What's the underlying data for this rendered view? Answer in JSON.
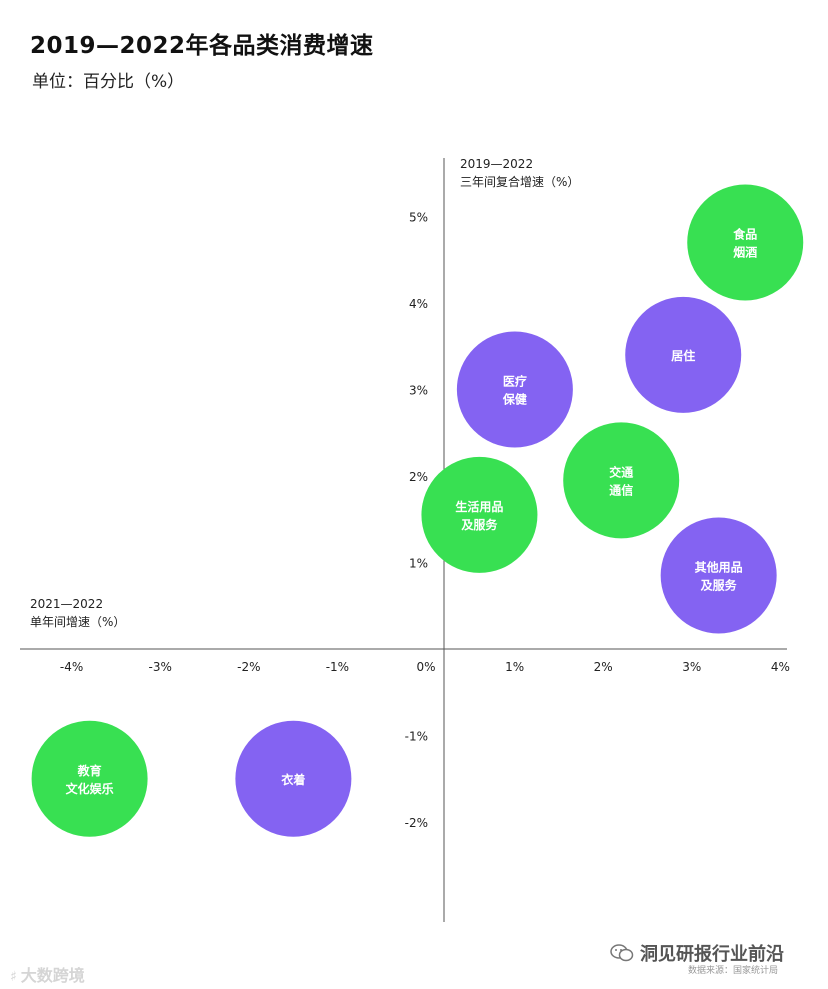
{
  "title": "2019—2022年各品类消费增速",
  "subtitle": "单位：百分比（%）",
  "chart_data": {
    "type": "scatter",
    "x_axis": {
      "label_lines": [
        "2021—2022",
        "单年间增速（%）"
      ],
      "range": [
        -4.4,
        4.1
      ],
      "ticks": [
        -4,
        -3,
        -2,
        -1,
        0,
        1,
        2,
        3,
        4
      ],
      "tick_labels": [
        "-4%",
        "-3%",
        "-2%",
        "-1%",
        "0%",
        "1%",
        "2%",
        "3%",
        "4%"
      ]
    },
    "y_axis": {
      "label_lines": [
        "2019—2022",
        "三年间复合增速（%）"
      ],
      "range": [
        -2.5,
        5.4
      ],
      "ticks": [
        5,
        4,
        3,
        2,
        1,
        -1,
        -2
      ],
      "tick_labels": [
        "5%",
        "4%",
        "3%",
        "2%",
        "1%",
        "-1%",
        "-2%"
      ]
    },
    "grid": false,
    "points": [
      {
        "label_lines": [
          "食品",
          "烟酒"
        ],
        "x": 3.4,
        "y": 4.7,
        "color": "#38e052"
      },
      {
        "label_lines": [
          "居住"
        ],
        "x": 2.7,
        "y": 3.4,
        "color": "#8463f2"
      },
      {
        "label_lines": [
          "医疗",
          "保健"
        ],
        "x": 0.8,
        "y": 3.0,
        "color": "#8463f2"
      },
      {
        "label_lines": [
          "交通",
          "通信"
        ],
        "x": 2.0,
        "y": 1.95,
        "color": "#38e052"
      },
      {
        "label_lines": [
          "生活用品",
          "及服务"
        ],
        "x": 0.4,
        "y": 1.55,
        "color": "#38e052"
      },
      {
        "label_lines": [
          "其他用品",
          "及服务"
        ],
        "x": 3.1,
        "y": 0.85,
        "color": "#8463f2"
      },
      {
        "label_lines": [
          "教育",
          "文化娱乐"
        ],
        "x": -4.0,
        "y": -1.5,
        "color": "#38e052"
      },
      {
        "label_lines": [
          "衣着"
        ],
        "x": -1.7,
        "y": -1.5,
        "color": "#8463f2"
      }
    ]
  },
  "footer": {
    "wechat_account": "洞见研报行业前沿",
    "source": "数据来源：国家统计局",
    "watermark": "大数跨境"
  }
}
